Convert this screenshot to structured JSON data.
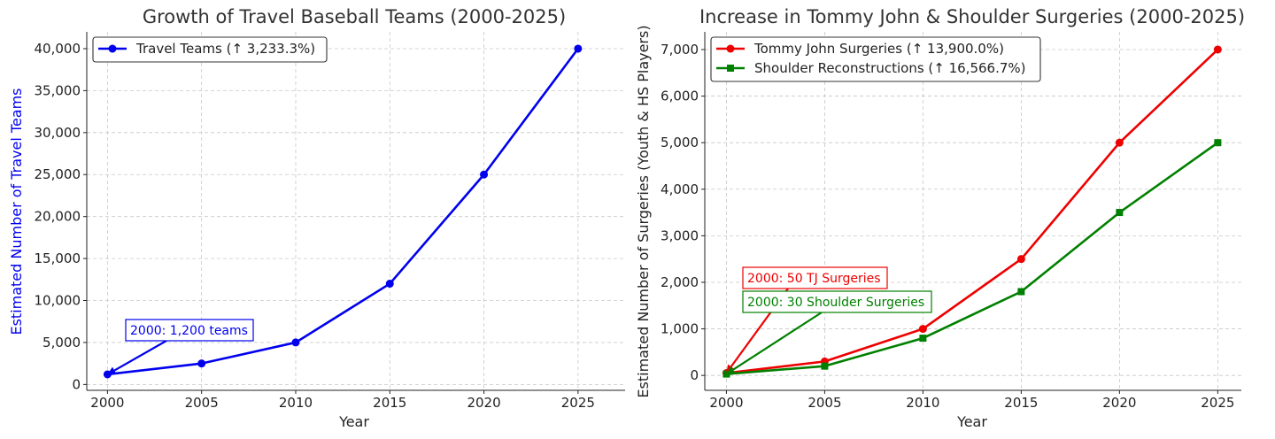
{
  "chart_data": [
    {
      "type": "line",
      "title": "Growth of Travel Baseball Teams (2000-2025)",
      "xlabel": "Year",
      "ylabel": "Estimated Number of Travel Teams",
      "ylabel_color": "#0000ee",
      "x": [
        2000,
        2005,
        2010,
        2015,
        2020,
        2025
      ],
      "xticks": [
        "2000",
        "2005",
        "2010",
        "2015",
        "2020",
        "2025"
      ],
      "xlim": [
        1998.9,
        2027.5
      ],
      "yticks": [
        "0",
        "5,000",
        "10,000",
        "15,000",
        "20,000",
        "25,000",
        "30,000",
        "35,000",
        "40,000"
      ],
      "ylim": [
        -700,
        42000
      ],
      "grid": true,
      "legend_position": "top-left",
      "series": [
        {
          "name": "Travel Teams (↑ 3,233.3%)",
          "values": [
            1200,
            2500,
            5000,
            12000,
            25000,
            40000
          ],
          "color": "#0000ee",
          "marker": "circle"
        }
      ],
      "annotations": [
        {
          "text": "2000: 1,200 teams",
          "color": "#0000ee",
          "x": 2000,
          "y": 1200
        }
      ]
    },
    {
      "type": "line",
      "title": "Increase in Tommy John & Shoulder Surgeries (2000-2025)",
      "xlabel": "Year",
      "ylabel": "Estimated Number of Surgeries (Youth & HS Players)",
      "x": [
        2000,
        2005,
        2010,
        2015,
        2020,
        2025
      ],
      "xticks": [
        "2000",
        "2005",
        "2010",
        "2015",
        "2020",
        "2025"
      ],
      "xlim": [
        1998.9,
        2026.2
      ],
      "yticks": [
        "0",
        "1,000",
        "2,000",
        "3,000",
        "4,000",
        "5,000",
        "6,000",
        "7,000"
      ],
      "ylim": [
        -320,
        7380
      ],
      "grid": true,
      "legend_position": "top-left",
      "series": [
        {
          "name": "Tommy John Surgeries (↑ 13,900.0%)",
          "values": [
            50,
            300,
            1000,
            2500,
            5000,
            7000
          ],
          "color": "#ee0000",
          "marker": "circle"
        },
        {
          "name": "Shoulder Reconstructions (↑ 16,566.7%)",
          "values": [
            30,
            200,
            800,
            1800,
            3500,
            5000
          ],
          "color": "#008000",
          "marker": "square"
        }
      ],
      "annotations": [
        {
          "text": "2000: 50 TJ Surgeries",
          "color": "#ee0000",
          "x": 2000,
          "y": 50
        },
        {
          "text": "2000: 30 Shoulder Surgeries",
          "color": "#008000",
          "x": 2000,
          "y": 30
        }
      ]
    }
  ]
}
